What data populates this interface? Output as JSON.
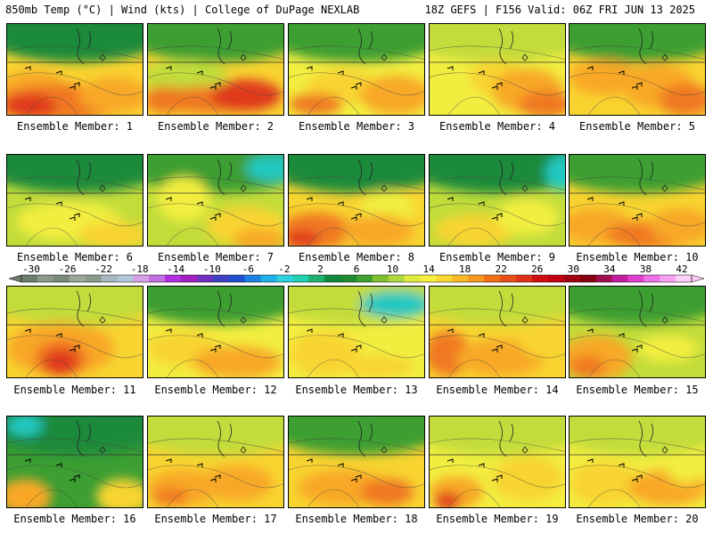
{
  "header": {
    "left": "850mb Temp (°C) | Wind (kts) | College of DuPage NEXLAB",
    "right": "18Z GEFS | F156 Valid: 06Z FRI JUN 13 2025"
  },
  "members": [
    "Ensemble Member: 1",
    "Ensemble Member: 2",
    "Ensemble Member: 3",
    "Ensemble Member: 4",
    "Ensemble Member: 5",
    "Ensemble Member: 6",
    "Ensemble Member: 7",
    "Ensemble Member: 8",
    "Ensemble Member: 9",
    "Ensemble Member: 10",
    "Ensemble Member: 11",
    "Ensemble Member: 12",
    "Ensemble Member: 13",
    "Ensemble Member: 14",
    "Ensemble Member: 15",
    "Ensemble Member: 16",
    "Ensemble Member: 17",
    "Ensemble Member: 18",
    "Ensemble Member: 19",
    "Ensemble Member: 20"
  ],
  "colorbar": {
    "labels": [
      "-30",
      "-26",
      "-22",
      "-18",
      "-14",
      "-10",
      "-6",
      "-2",
      "2",
      "6",
      "10",
      "14",
      "18",
      "22",
      "26",
      "30",
      "34",
      "38",
      "42"
    ],
    "colors": [
      "#6e7e6e",
      "#8c9a8c",
      "#7a8a7a",
      "#9aa89a",
      "#8a9a8a",
      "#a8b8c0",
      "#b0c8d8",
      "#d6a0e6",
      "#c070e0",
      "#b030e0",
      "#a020c0",
      "#7030c0",
      "#4040c0",
      "#2050d0",
      "#2080e0",
      "#20b0e8",
      "#30d0e0",
      "#20d0b0",
      "#20b070",
      "#108840",
      "#208a30",
      "#40a030",
      "#80c030",
      "#b0d840",
      "#e0ec40",
      "#f8f040",
      "#f8d830",
      "#f8b828",
      "#f89820",
      "#f07018",
      "#e85018",
      "#e03018",
      "#d01010",
      "#c00010",
      "#a00010",
      "#880010",
      "#a01050",
      "#c020a0",
      "#e040d0",
      "#f070e8",
      "#f8a0f0",
      "#fcd0f8"
    ]
  }
}
